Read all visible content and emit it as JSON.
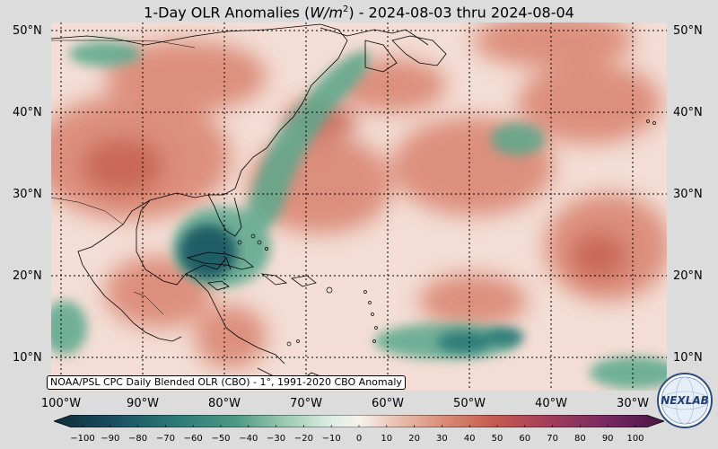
{
  "title": {
    "prefix": "1-Day OLR Anomalies (",
    "unit_base": "W/m",
    "unit_exp": "2",
    "suffix": ") - 2024-08-03 thru 2024-08-04"
  },
  "map": {
    "lat_labels": [
      "50°N",
      "40°N",
      "30°N",
      "20°N",
      "10°N"
    ],
    "lon_labels": [
      "100°W",
      "90°W",
      "80°W",
      "70°W",
      "60°W",
      "50°W",
      "40°W",
      "30°W"
    ],
    "credit": "NOAA/PSL CPC Daily Blended OLR (CBO) - 1°, 1991-2020 CBO Anomaly",
    "colors": {
      "ocean_base": "#f3ddd4",
      "warm": "#d9826e",
      "warm_strong": "#c45e4e",
      "cool": "#5aa88d",
      "cool_strong": "#1d5a65",
      "coast": "#000000",
      "grid": "#000000"
    }
  },
  "colorbar": {
    "ticks": [
      "−100",
      "−90",
      "−80",
      "−70",
      "−60",
      "−50",
      "−40",
      "−30",
      "−20",
      "−10",
      "0",
      "10",
      "20",
      "30",
      "40",
      "50",
      "60",
      "70",
      "80",
      "90",
      "100"
    ],
    "stops": [
      "#0f2b3a",
      "#1a5060",
      "#2c7a78",
      "#4e9a85",
      "#7dbb9d",
      "#b8d9c4",
      "#f7f2ee",
      "#eac2b3",
      "#d98b76",
      "#c55b4f",
      "#a8405a",
      "#7a2a62",
      "#4a1547"
    ]
  },
  "logo": {
    "text": "NEXLAB",
    "icon": "nexlab-logo-icon"
  }
}
